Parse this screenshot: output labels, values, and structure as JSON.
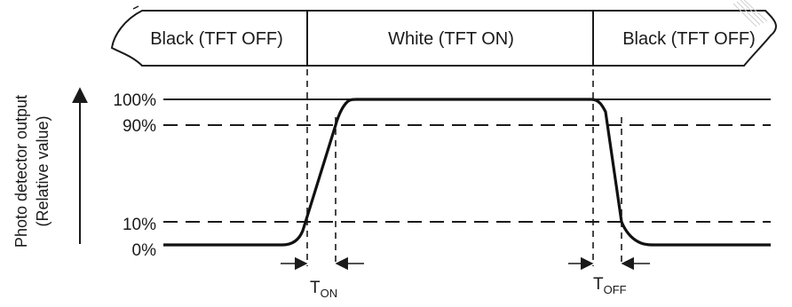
{
  "states": {
    "left": "Black (TFT OFF)",
    "middle": "White (TFT ON)",
    "right": "Black (TFT OFF)"
  },
  "y_axis": {
    "line1": "Photo detector output",
    "line2": "(Relative value)"
  },
  "levels": {
    "l100": "100%",
    "l90": "90%",
    "l10": "10%",
    "l0": "0%"
  },
  "timing": {
    "t_on": {
      "main": "T",
      "sub": "ON"
    },
    "t_off": {
      "main": "T",
      "sub": "OFF"
    }
  }
}
